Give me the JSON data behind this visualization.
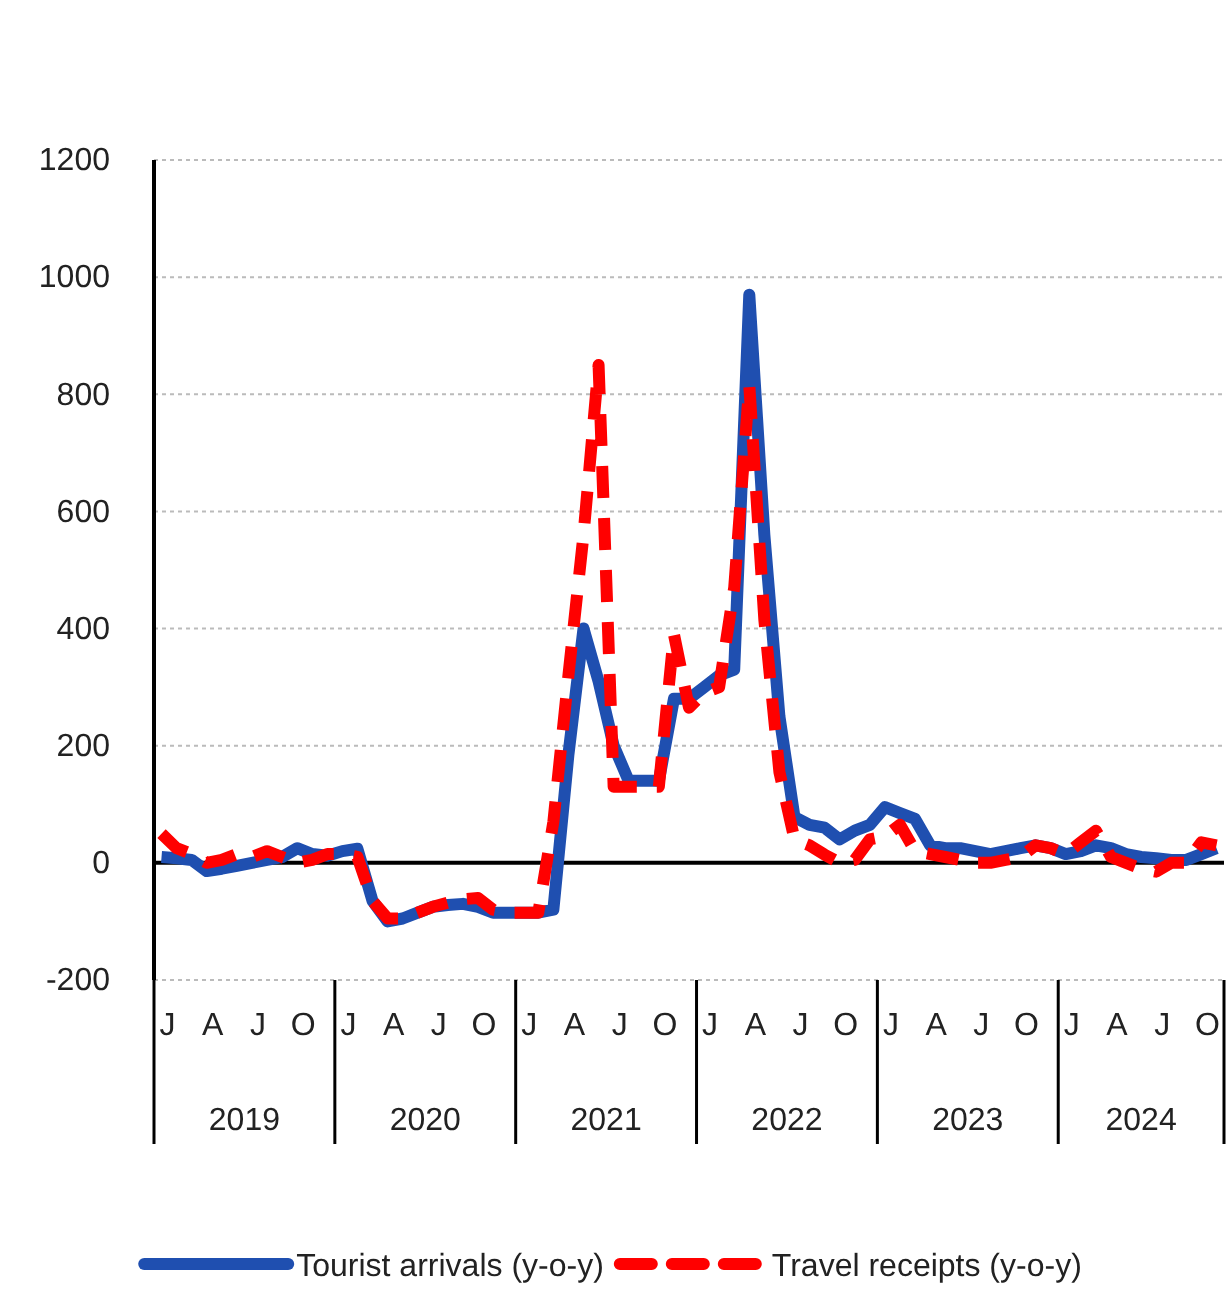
{
  "chart_data": {
    "type": "line",
    "categories": [
      "J",
      null,
      null,
      "A",
      null,
      null,
      "J",
      null,
      null,
      "O",
      null,
      null,
      "J",
      null,
      null,
      "A",
      null,
      null,
      "J",
      null,
      null,
      "O",
      null,
      null,
      "J",
      null,
      null,
      "A",
      null,
      null,
      "J",
      null,
      null,
      "O",
      null,
      null,
      "J",
      null,
      null,
      "A",
      null,
      null,
      "J",
      null,
      null,
      "O",
      null,
      null,
      "J",
      null,
      null,
      "A",
      null,
      null,
      "J",
      null,
      null,
      "O",
      null,
      null,
      "J",
      null,
      null,
      "A",
      null,
      null,
      "J",
      null,
      null,
      "O",
      null
    ],
    "annotations": [
      "2019",
      "2020",
      "2021",
      "2022",
      "2023",
      "2024"
    ],
    "series": [
      {
        "name": "Tourist arrivals (y-o-y)",
        "color": "#1f4fb0",
        "line_style": "solid",
        "values": [
          10,
          8,
          5,
          -14,
          -10,
          -5,
          0,
          5,
          10,
          25,
          15,
          12,
          20,
          24,
          -65,
          -100,
          -95,
          -85,
          -75,
          -72,
          -70,
          -75,
          -85,
          -85,
          -85,
          -85,
          -80,
          185,
          400,
          310,
          200,
          140,
          140,
          140,
          280,
          280,
          300,
          320,
          330,
          970,
          560,
          250,
          78,
          65,
          60,
          40,
          55,
          65,
          95,
          85,
          75,
          30,
          25,
          25,
          20,
          15,
          20,
          25,
          30,
          25,
          15,
          20,
          30,
          25,
          15,
          10,
          8,
          5,
          5,
          15,
          25
        ]
      },
      {
        "name": "Travel receipts (y-o-y)",
        "color": "#ff0000",
        "line_style": "dashed",
        "values": [
          50,
          25,
          15,
          0,
          5,
          15,
          10,
          20,
          10,
          0,
          5,
          15,
          15,
          10,
          -65,
          -95,
          -95,
          -85,
          -75,
          -68,
          -62,
          -60,
          -80,
          -85,
          -85,
          -85,
          70,
          320,
          560,
          850,
          130,
          130,
          130,
          130,
          390,
          265,
          290,
          300,
          470,
          815,
          415,
          155,
          40,
          30,
          14,
          0,
          5,
          40,
          45,
          65,
          20,
          15,
          10,
          5,
          0,
          0,
          5,
          10,
          30,
          25,
          15,
          35,
          55,
          10,
          0,
          -10,
          -15,
          0,
          0,
          35,
          30
        ]
      }
    ],
    "ylim": [
      -200,
      1200
    ],
    "yticks": [
      -200,
      0,
      200,
      400,
      600,
      800,
      1000,
      1200
    ],
    "grid": "y",
    "legend": "bottom",
    "marker": "none"
  }
}
